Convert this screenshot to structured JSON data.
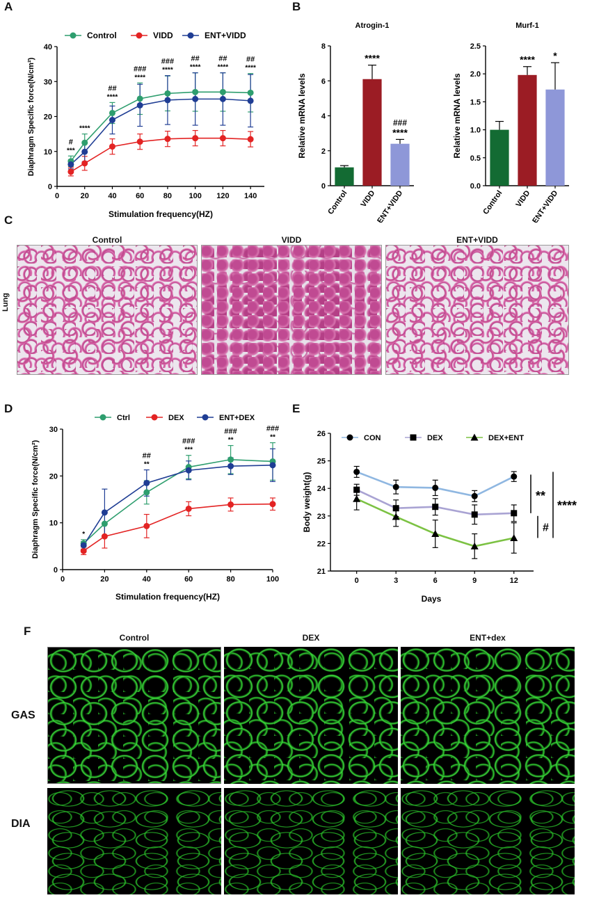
{
  "panels": {
    "A": "A",
    "B": "B",
    "C": "C",
    "D": "D",
    "E": "E",
    "F": "F"
  },
  "colors": {
    "control_green": "#2e9e6e",
    "vidd_red": "#e32323",
    "ent_blue": "#1f3d94",
    "bar_control": "#136b33",
    "bar_vidd": "#9b1c24",
    "bar_ent": "#8e97d8",
    "con_line": "#8fb7e1",
    "dex_line": "#a9a3d3",
    "dexent_line": "#7cc243"
  },
  "chart_data": [
    {
      "id": "A",
      "type": "line",
      "xlabel": "Stimulation frequency(HZ)",
      "ylabel": "Diaphragm Specific force(N/cm²)",
      "ylim": [
        0,
        40
      ],
      "xlim": [
        0,
        150
      ],
      "x_ticks": [
        0,
        20,
        40,
        60,
        80,
        100,
        120,
        140
      ],
      "y_ticks": [
        0,
        10,
        20,
        30,
        40
      ],
      "x": [
        10,
        20,
        40,
        60,
        80,
        100,
        120,
        140
      ],
      "legend_position": "top",
      "series": [
        {
          "name": "Control",
          "values": [
            7.2,
            12.5,
            21,
            25.1,
            26.6,
            27,
            27,
            26.8
          ],
          "err": [
            1.5,
            2.5,
            3,
            4.5,
            5,
            5.5,
            5.5,
            5.5
          ]
        },
        {
          "name": "VIDD",
          "values": [
            4.2,
            6.6,
            11.4,
            12.8,
            13.6,
            13.8,
            13.8,
            13.5
          ],
          "err": [
            1.2,
            2,
            2.2,
            2.2,
            2.2,
            2.2,
            2.2,
            2.2
          ]
        },
        {
          "name": "ENT+VIDD",
          "values": [
            6.3,
            9.9,
            19,
            23.2,
            24.7,
            25,
            25,
            24.5
          ],
          "err": [
            1.3,
            2.8,
            4,
            6,
            7,
            7.5,
            7.5,
            7.5
          ]
        }
      ],
      "annotations": [
        {
          "x": 10,
          "lines": [
            "#",
            "***"
          ]
        },
        {
          "x": 20,
          "lines": [
            "****"
          ]
        },
        {
          "x": 40,
          "lines": [
            "##",
            "****"
          ]
        },
        {
          "x": 60,
          "lines": [
            "###",
            "****"
          ]
        },
        {
          "x": 80,
          "lines": [
            "###",
            "****"
          ]
        },
        {
          "x": 100,
          "lines": [
            "##",
            "****"
          ]
        },
        {
          "x": 120,
          "lines": [
            "##",
            "****"
          ]
        },
        {
          "x": 140,
          "lines": [
            "##",
            "****"
          ]
        }
      ]
    },
    {
      "id": "B1",
      "type": "bar",
      "title": "Atrogin-1",
      "ylabel": "Relative mRNA levels",
      "ylim": [
        0,
        8
      ],
      "y_ticks": [
        0,
        2,
        4,
        6,
        8
      ],
      "categories": [
        "Control",
        "VIDD",
        "ENT+VIDD"
      ],
      "values": [
        1.05,
        6.1,
        2.4
      ],
      "err": [
        0.1,
        0.8,
        0.25
      ],
      "annotations": [
        [],
        [
          "****"
        ],
        [
          "###",
          "****"
        ]
      ]
    },
    {
      "id": "B2",
      "type": "bar",
      "title": "Murf-1",
      "ylabel": "Relative mRNA levels",
      "ylim": [
        0,
        2.5
      ],
      "y_ticks": [
        "0.0",
        "0.5",
        "1.0",
        "1.5",
        "2.0",
        "2.5"
      ],
      "categories": [
        "Control",
        "VIDD",
        "ENT+VIDD"
      ],
      "values": [
        1.0,
        1.98,
        1.72
      ],
      "err": [
        0.15,
        0.15,
        0.48
      ],
      "annotations": [
        [],
        [
          "****"
        ],
        [
          "*"
        ]
      ]
    },
    {
      "id": "D",
      "type": "line",
      "xlabel": "Stimulation frequency(HZ)",
      "ylabel": "Diaphragm Specific force(N/cm²)",
      "ylim": [
        0,
        30
      ],
      "xlim": [
        0,
        100
      ],
      "x_ticks": [
        0,
        20,
        40,
        60,
        80,
        100
      ],
      "y_ticks": [
        0,
        10,
        20,
        30
      ],
      "x": [
        10,
        20,
        40,
        60,
        80,
        100
      ],
      "legend_position": "top",
      "series": [
        {
          "name": "Ctrl",
          "values": [
            5.6,
            9.8,
            16.5,
            21.9,
            23.5,
            23.1
          ],
          "err": [
            0.8,
            2.5,
            2.5,
            2.5,
            3,
            4
          ]
        },
        {
          "name": "DEX",
          "values": [
            4,
            7.1,
            9.3,
            13,
            13.9,
            14
          ],
          "err": [
            0.8,
            2.5,
            2.5,
            1.5,
            1.4,
            1.3
          ]
        },
        {
          "name": "ENT+DEX",
          "values": [
            5.2,
            12.2,
            18.5,
            21.2,
            22.1,
            22.3
          ],
          "err": [
            0.8,
            5,
            2.8,
            2,
            1.8,
            3.5
          ]
        }
      ],
      "annotations": [
        {
          "x": 10,
          "lines": [
            "*"
          ]
        },
        {
          "x": 40,
          "lines": [
            "##",
            "**"
          ]
        },
        {
          "x": 60,
          "lines": [
            "###",
            "***"
          ]
        },
        {
          "x": 80,
          "lines": [
            "###",
            "**"
          ]
        },
        {
          "x": 100,
          "lines": [
            "###",
            "**"
          ]
        }
      ]
    },
    {
      "id": "E",
      "type": "line",
      "xlabel": "Days",
      "ylabel": "Body weight(g)",
      "ylim": [
        21,
        26
      ],
      "y_ticks": [
        21,
        22,
        23,
        24,
        25,
        26
      ],
      "x_ticks": [
        0,
        3,
        6,
        9,
        12
      ],
      "x": [
        0,
        3,
        6,
        9,
        12
      ],
      "legend_position": "top",
      "series": [
        {
          "name": "CON",
          "values": [
            24.6,
            24.05,
            24.02,
            23.72,
            24.43
          ],
          "err": [
            0.2,
            0.25,
            0.28,
            0.2,
            0.18
          ]
        },
        {
          "name": "DEX",
          "values": [
            23.95,
            23.28,
            23.33,
            23.05,
            23.1
          ],
          "err": [
            0.2,
            0.3,
            0.3,
            0.35,
            0.3
          ]
        },
        {
          "name": "DEX+ENT",
          "values": [
            23.62,
            22.97,
            22.35,
            21.9,
            22.2
          ],
          "err": [
            0.4,
            0.35,
            0.5,
            0.45,
            0.55
          ]
        }
      ],
      "significance": [
        "**",
        "#",
        "****"
      ]
    }
  ],
  "panel_c": {
    "row_label": "Lung",
    "titles": [
      "Control",
      "VIDD",
      "ENT+VIDD"
    ]
  },
  "panel_f": {
    "titles": [
      "Control",
      "DEX",
      "ENT+dex"
    ],
    "rows": [
      "GAS",
      "DIA"
    ]
  }
}
